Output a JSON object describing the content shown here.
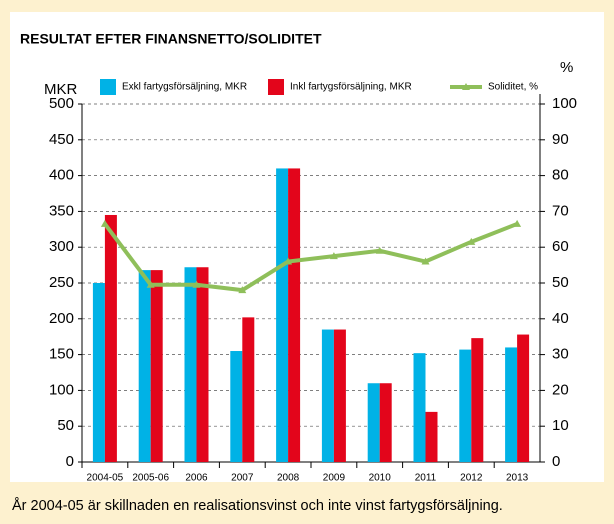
{
  "chart_data": {
    "type": "bar",
    "title": "RESULTAT EFTER FINANSNETTO/SOLIDITET",
    "y_label": "MKR",
    "y2_label": "%",
    "caption": "År 2004-05 är skillnaden en realisationsvinst och inte vinst fartygsförsäljning.",
    "categories": [
      "2004-05",
      "2005-06",
      "2006",
      "2007",
      "2008",
      "2009",
      "2010",
      "2011",
      "2012",
      "2013"
    ],
    "series": [
      {
        "name": "Exkl fartygsförsäljning, MKR",
        "color": "#00b2e6",
        "values": [
          250,
          268,
          272,
          155,
          410,
          185,
          110,
          152,
          157,
          160
        ]
      },
      {
        "name": "Inkl fartygsförsäljning, MKR",
        "color": "#e3051b",
        "values": [
          345,
          268,
          272,
          202,
          410,
          185,
          110,
          70,
          173,
          178
        ]
      },
      {
        "name": "Soliditet, %",
        "color": "#8fbf5a",
        "type": "line",
        "axis": "y2",
        "values": [
          66.5,
          49.5,
          49.5,
          48,
          56,
          57.5,
          59,
          56,
          61.5,
          66.5
        ]
      }
    ],
    "ylim": [
      0,
      500
    ],
    "yticks": [
      0,
      50,
      100,
      150,
      200,
      250,
      300,
      350,
      400,
      450,
      500
    ],
    "y2lim": [
      0,
      100
    ],
    "y2ticks": [
      0,
      10,
      20,
      30,
      40,
      50,
      60,
      70,
      80,
      90,
      100
    ],
    "grid": true
  }
}
